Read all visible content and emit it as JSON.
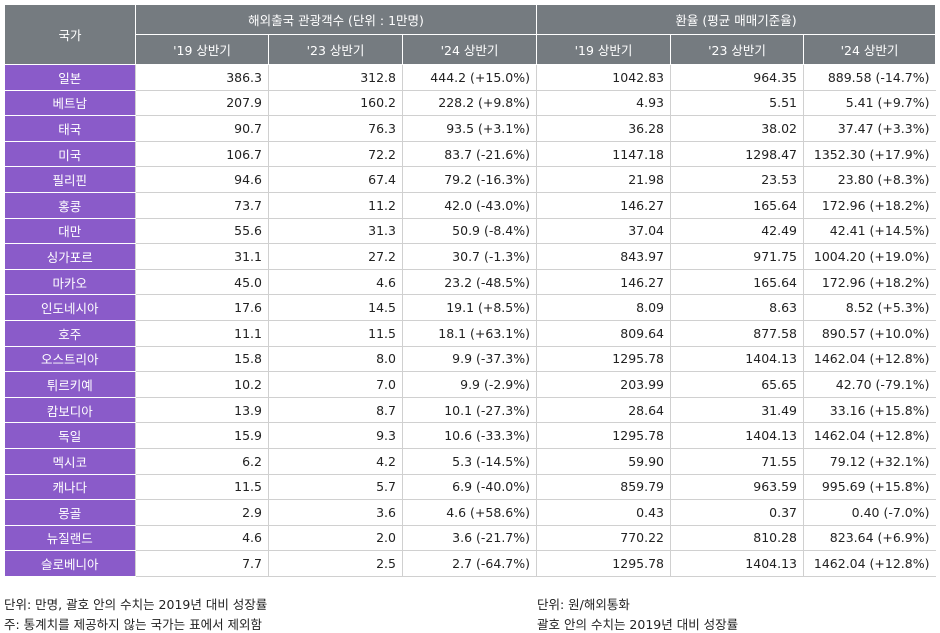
{
  "header": {
    "country": "국가",
    "group1": "해외출국 관광객수 (단위 : 1만명)",
    "group2": "환율 (평균 매매기준율)",
    "sub": [
      "'19 상반기",
      "'23 상반기",
      "'24 상반기",
      "'19 상반기",
      "'23 상반기",
      "'24 상반기"
    ]
  },
  "table": {
    "rows": [
      [
        "일본",
        "386.3",
        "312.8",
        "444.2 (+15.0%)",
        "1042.83",
        "964.35",
        "889.58 (-14.7%)"
      ],
      [
        "베트남",
        "207.9",
        "160.2",
        "228.2 (+9.8%)",
        "4.93",
        "5.51",
        "5.41 (+9.7%)"
      ],
      [
        "태국",
        "90.7",
        "76.3",
        "93.5 (+3.1%)",
        "36.28",
        "38.02",
        "37.47 (+3.3%)"
      ],
      [
        "미국",
        "106.7",
        "72.2",
        "83.7 (-21.6%)",
        "1147.18",
        "1298.47",
        "1352.30 (+17.9%)"
      ],
      [
        "필리핀",
        "94.6",
        "67.4",
        "79.2 (-16.3%)",
        "21.98",
        "23.53",
        "23.80 (+8.3%)"
      ],
      [
        "홍콩",
        "73.7",
        "11.2",
        "42.0 (-43.0%)",
        "146.27",
        "165.64",
        "172.96 (+18.2%)"
      ],
      [
        "대만",
        "55.6",
        "31.3",
        "50.9 (-8.4%)",
        "37.04",
        "42.49",
        "42.41 (+14.5%)"
      ],
      [
        "싱가포르",
        "31.1",
        "27.2",
        "30.7 (-1.3%)",
        "843.97",
        "971.75",
        "1004.20 (+19.0%)"
      ],
      [
        "마카오",
        "45.0",
        "4.6",
        "23.2 (-48.5%)",
        "146.27",
        "165.64",
        "172.96 (+18.2%)"
      ],
      [
        "인도네시아",
        "17.6",
        "14.5",
        "19.1 (+8.5%)",
        "8.09",
        "8.63",
        "8.52 (+5.3%)"
      ],
      [
        "호주",
        "11.1",
        "11.5",
        "18.1 (+63.1%)",
        "809.64",
        "877.58",
        "890.57 (+10.0%)"
      ],
      [
        "오스트리아",
        "15.8",
        "8.0",
        "9.9 (-37.3%)",
        "1295.78",
        "1404.13",
        "1462.04 (+12.8%)"
      ],
      [
        "튀르키예",
        "10.2",
        "7.0",
        "9.9 (-2.9%)",
        "203.99",
        "65.65",
        "42.70 (-79.1%)"
      ],
      [
        "캄보디아",
        "13.9",
        "8.7",
        "10.1 (-27.3%)",
        "28.64",
        "31.49",
        "33.16 (+15.8%)"
      ],
      [
        "독일",
        "15.9",
        "9.3",
        "10.6 (-33.3%)",
        "1295.78",
        "1404.13",
        "1462.04 (+12.8%)"
      ],
      [
        "멕시코",
        "6.2",
        "4.2",
        "5.3 (-14.5%)",
        "59.90",
        "71.55",
        "79.12 (+32.1%)"
      ],
      [
        "캐나다",
        "11.5",
        "5.7",
        "6.9 (-40.0%)",
        "859.79",
        "963.59",
        "995.69 (+15.8%)"
      ],
      [
        "몽골",
        "2.9",
        "3.6",
        "4.6 (+58.6%)",
        "0.43",
        "0.37",
        "0.40 (-7.0%)"
      ],
      [
        "뉴질랜드",
        "4.6",
        "2.0",
        "3.6 (-21.7%)",
        "770.22",
        "810.28",
        "823.64 (+6.9%)"
      ],
      [
        "슬로베니아",
        "7.7",
        "2.5",
        "2.7 (-64.7%)",
        "1295.78",
        "1404.13",
        "1462.04 (+12.8%)"
      ]
    ]
  },
  "notes": {
    "left": [
      "단위: 만명, 괄호 안의 수치는 2019년 대비 성장률",
      "주: 통계치를 제공하지 않는 국가는 표에서 제외함"
    ],
    "right": [
      "단위: 원/해외통화",
      "괄호 안의 수치는 2019년 대비 성장률"
    ]
  }
}
